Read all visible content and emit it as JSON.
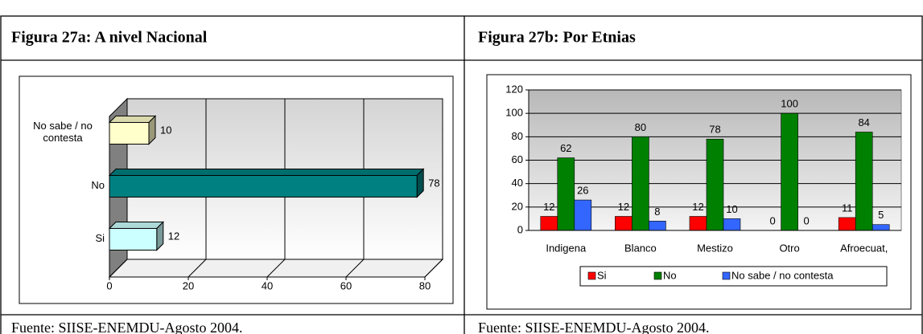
{
  "chart_data": [
    {
      "type": "bar",
      "orientation": "horizontal",
      "title": "Figura 27a: A nivel Nacional",
      "source": "Fuente: SIISE-ENEMDU-Agosto 2004.",
      "categories": [
        "Si",
        "No",
        "No sabe / no contesta"
      ],
      "values": [
        12,
        78,
        10
      ],
      "colors": [
        "#ccffff",
        "#008080",
        "#ffffcc"
      ],
      "xlim": [
        0,
        80
      ],
      "xticks": [
        0,
        20,
        40,
        60,
        80
      ],
      "grid": true
    },
    {
      "type": "bar",
      "title": "Figura 27b: Por Etnias",
      "source": "Fuente: SIISE-ENEMDU-Agosto 2004.",
      "categories": [
        "Indigena",
        "Blanco",
        "Mestizo",
        "Otro",
        "Afroecuat,"
      ],
      "series": [
        {
          "name": "Si",
          "color": "#ff0000",
          "values": [
            12,
            12,
            12,
            0,
            11
          ]
        },
        {
          "name": "No",
          "color": "#008000",
          "values": [
            62,
            80,
            78,
            100,
            84
          ]
        },
        {
          "name": "No sabe / no contesta",
          "color": "#3366ff",
          "values": [
            26,
            8,
            10,
            0,
            5
          ]
        }
      ],
      "ylim": [
        0,
        120
      ],
      "yticks": [
        0,
        20,
        40,
        60,
        80,
        100,
        120
      ],
      "grid": true,
      "legend": "bottom"
    }
  ]
}
